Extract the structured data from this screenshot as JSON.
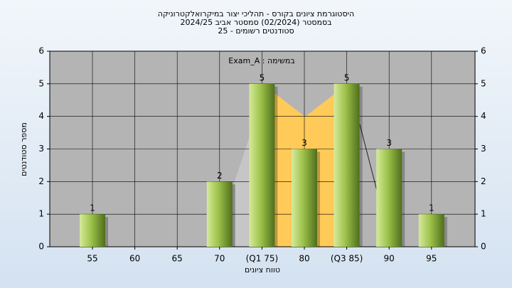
{
  "chart_data": {
    "type": "bar",
    "title": "היסטוגרמת ציונים בקורס - תהליכי יצור במיקרואלקטרוניקה",
    "subtitle": "בסמסטר  (02/2024)  סמסטר אביב 2024/25",
    "subtitle2": "סטודנטים רשומים - 25",
    "annotation": "במשימה : Exam_A",
    "x_label": "טווח ציונים",
    "y_label": "מספר סטודנטים",
    "categories": [
      "55",
      "60",
      "65",
      "70",
      "(Q1 75)",
      "80",
      "(Q3 85)",
      "90",
      "95"
    ],
    "values": [
      1,
      0,
      0,
      2,
      5,
      3,
      5,
      3,
      1
    ],
    "color": "#9dc24a",
    "ylim": [
      0,
      6
    ],
    "yticks": [
      0,
      1,
      2,
      3,
      4,
      5,
      6
    ],
    "grid": true
  }
}
